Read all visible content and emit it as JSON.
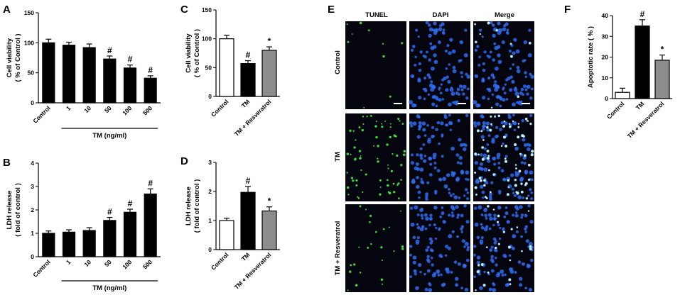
{
  "panel_letters": {
    "a": "A",
    "b": "B",
    "c": "C",
    "d": "D",
    "e": "E",
    "f": "F"
  },
  "colors": {
    "black_bar": "#000000",
    "white_bar": "#ffffff",
    "gray_bar": "#8c8c8c",
    "tunel": "#3ddc3d",
    "dapi": "#2f6cf0",
    "micro_bg": "#050510"
  },
  "chart_data": [
    {
      "id": "A",
      "type": "bar",
      "ylabel": [
        "Cell viability",
        "( % of Control )"
      ],
      "ylim": [
        0,
        150
      ],
      "yticks": [
        0,
        50,
        100,
        150
      ],
      "categories": [
        "Control",
        "1",
        "10",
        "50",
        "100",
        "500"
      ],
      "values": [
        100,
        96,
        92,
        73,
        58,
        41
      ],
      "errors": [
        6,
        5,
        6,
        5,
        5,
        4
      ],
      "bar_colors": [
        "black",
        "black",
        "black",
        "black",
        "black",
        "black"
      ],
      "significance": [
        "",
        "",
        "",
        "#",
        "#",
        "#"
      ],
      "group_label": "TM (ng/ml)",
      "group_from": 1,
      "group_to": 5
    },
    {
      "id": "B",
      "type": "bar",
      "ylabel": [
        "LDH release",
        "( fold of control )"
      ],
      "ylim": [
        0,
        4
      ],
      "yticks": [
        0,
        1,
        2,
        3,
        4
      ],
      "categories": [
        "Control",
        "1",
        "10",
        "50",
        "100",
        "500"
      ],
      "values": [
        1.0,
        1.05,
        1.12,
        1.55,
        1.9,
        2.68
      ],
      "errors": [
        0.1,
        0.1,
        0.12,
        0.13,
        0.13,
        0.22
      ],
      "bar_colors": [
        "black",
        "black",
        "black",
        "black",
        "black",
        "black"
      ],
      "significance": [
        "",
        "",
        "",
        "#",
        "#",
        "#"
      ],
      "group_label": "TM (ng/ml)",
      "group_from": 1,
      "group_to": 5
    },
    {
      "id": "C",
      "type": "bar",
      "ylabel": [
        "Cell viability",
        "( % of Control )"
      ],
      "ylim": [
        0,
        150
      ],
      "yticks": [
        0,
        50,
        100,
        150
      ],
      "categories": [
        "Control",
        "TM",
        "TM + Resveratrol"
      ],
      "values": [
        100,
        57,
        80
      ],
      "errors": [
        6,
        5,
        6
      ],
      "bar_colors": [
        "white",
        "black",
        "gray"
      ],
      "significance": [
        "",
        "#",
        "*"
      ]
    },
    {
      "id": "D",
      "type": "bar",
      "ylabel": [
        "LDH release",
        "( fold of control )"
      ],
      "ylim": [
        0,
        3
      ],
      "yticks": [
        0,
        1,
        2,
        3
      ],
      "categories": [
        "Control",
        "TM",
        "TM + Resveratrol"
      ],
      "values": [
        1.0,
        1.97,
        1.33
      ],
      "errors": [
        0.08,
        0.2,
        0.14
      ],
      "bar_colors": [
        "white",
        "black",
        "gray"
      ],
      "significance": [
        "",
        "#",
        "*"
      ]
    },
    {
      "id": "F",
      "type": "bar",
      "ylabel": [
        "Apoptotic rate ( % )"
      ],
      "ylim": [
        0,
        40
      ],
      "yticks": [
        0,
        10,
        20,
        30,
        40
      ],
      "categories": [
        "Control",
        "TM",
        "TM + Resveratrol"
      ],
      "values": [
        3,
        35,
        18.5
      ],
      "errors": [
        2,
        3,
        2.5
      ],
      "bar_colors": [
        "white",
        "black",
        "gray"
      ],
      "significance": [
        "",
        "#",
        "*"
      ]
    }
  ],
  "microscopy": {
    "columns": [
      "TUNEL",
      "DAPI",
      "Merge"
    ],
    "rows": [
      "Control",
      "TM",
      "TM + Resveratrol"
    ]
  }
}
